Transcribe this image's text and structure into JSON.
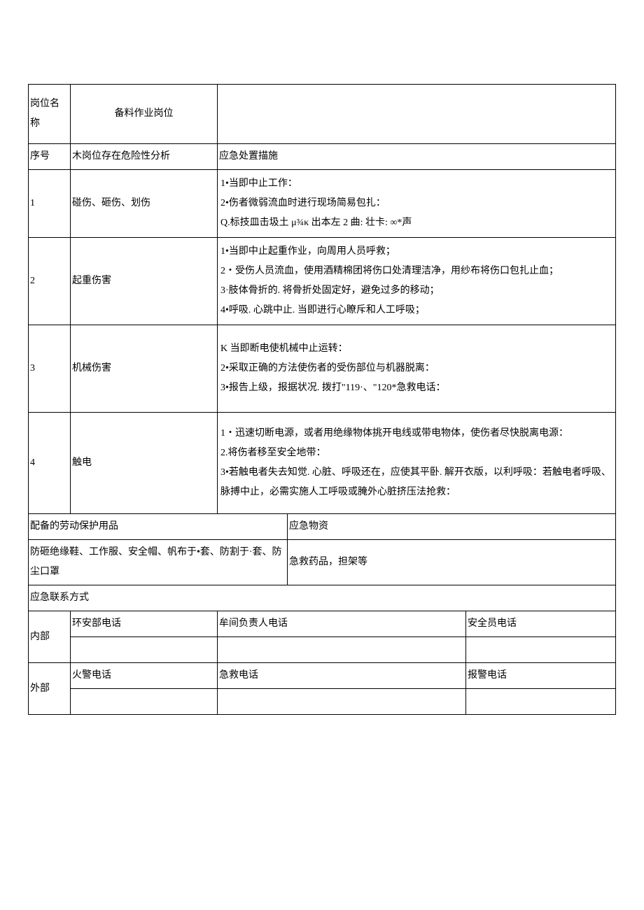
{
  "header": {
    "position_label": "岗位名称",
    "position_value": "备料作业岗位",
    "seq_label": "序号",
    "risk_label": "木岗位存在危险性分析",
    "measure_label": "应急处置描施"
  },
  "rows": [
    {
      "num": "1",
      "risk": "碰伤、砸伤、划伤",
      "measure": "1•当即中止工作：\n2•伤者微弱流血时进行现场简易包扎：\nQ.标技皿击圾土 μ¾κ 出本左 2 曲: 壮卡: ∞*声"
    },
    {
      "num": "2",
      "risk": "起重伤害",
      "measure": "1•当即中止起重作业，向周用人员呼救；\n2・受伤人员流血，使用酒精棉团将伤口处清理洁净，用纱布将伤口包扎止血；\n3·肢体骨折的. 将骨折处固定好，避免过多的移动；\n4•呼吸. 心跳中止. 当即进行心瞭斥和人工呼吸；"
    },
    {
      "num": "3",
      "risk": "机械伤害",
      "measure": "K 当即断电使机械中止运转：\n2•采取正确的方法使伤者的受伤部位与机器脱离：\n3•报告上级，报据状况. 拨打\"119·、\"120*急救电话："
    },
    {
      "num": "4",
      "risk": "触电",
      "measure": "1・迅速切断电源，或者用绝缘物体挑开电线或带电物体，使伤者尽快脱离电源：\n2.将伤者移至安全地带：\n3•若触电者失去知觉. 心脏、呼吸还在，应使其平卧. 解开衣版，以利呼吸：若触电者呼吸、脉搏中止，必需实施人工呼吸或腌外心脏挤压法抢救："
    }
  ],
  "ppe": {
    "label": "配备的劳动保护用品",
    "value": "防砸绝缘鞋、工作服、安全帽、帆布于•套、防割于·套、防尘口罩",
    "supply_label": "应急物资",
    "supply_value": "急救药品，担架等"
  },
  "contact": {
    "title": "应急联系方式",
    "internal_label": "内部",
    "external_label": "外部",
    "internal": {
      "c1": "环安部电话",
      "c2": "牟间负责人电话",
      "c3": "安全员电话"
    },
    "external": {
      "c1": "火警电话",
      "c2": "急救电话",
      "c3": "报警电话"
    }
  }
}
